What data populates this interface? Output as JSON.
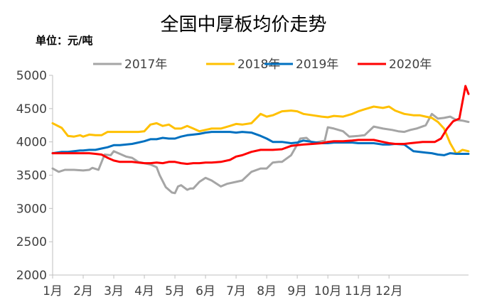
{
  "chart_data": {
    "type": "line",
    "title": "全国中厚板均价走势",
    "unit_label": "单位：元/吨",
    "categories": [
      "1月",
      "2月",
      "3月",
      "4月",
      "5月",
      "6月",
      "7月",
      "8月",
      "9月",
      "10月",
      "11月",
      "12月"
    ],
    "ylim": [
      2000,
      5000
    ],
    "yticks": [
      2000,
      2500,
      3000,
      3500,
      4000,
      4500,
      5000
    ],
    "grid": false,
    "legend_position": "top",
    "series": [
      {
        "name": "2017年",
        "color": "#a5a5a5",
        "x": [
          0,
          0.2,
          0.4,
          0.7,
          1.0,
          1.2,
          1.3,
          1.5,
          1.7,
          1.9,
          2.0,
          2.2,
          2.4,
          2.6,
          2.8,
          3.0,
          3.2,
          3.4,
          3.5,
          3.7,
          3.9,
          4.0,
          4.1,
          4.2,
          4.4,
          4.5,
          4.6,
          4.8,
          5.0,
          5.2,
          5.5,
          5.7,
          6.0,
          6.2,
          6.5,
          6.8,
          7.0,
          7.2,
          7.4,
          7.5,
          7.8,
          8.0,
          8.1,
          8.3,
          8.5,
          8.7,
          8.9,
          9.0,
          9.2,
          9.5,
          9.7,
          10.0,
          10.2,
          10.5,
          10.8,
          11.1,
          11.3,
          11.5,
          11.7,
          11.9,
          12.2,
          12.4,
          12.6,
          12.8,
          13.0,
          13.2,
          13.4,
          13.6
        ],
        "y": [
          3600,
          3550,
          3580,
          3580,
          3570,
          3580,
          3610,
          3580,
          3810,
          3800,
          3860,
          3820,
          3780,
          3760,
          3700,
          3680,
          3660,
          3620,
          3500,
          3320,
          3240,
          3230,
          3330,
          3350,
          3280,
          3300,
          3300,
          3400,
          3460,
          3420,
          3330,
          3370,
          3400,
          3420,
          3550,
          3600,
          3600,
          3690,
          3700,
          3700,
          3800,
          3960,
          4050,
          4060,
          3980,
          4000,
          4020,
          4220,
          4200,
          4160,
          4080,
          4090,
          4100,
          4230,
          4200,
          4180,
          4160,
          4150,
          4180,
          4200,
          4250,
          4420,
          4350,
          4360,
          4380,
          4330,
          4320,
          4300
        ]
      },
      {
        "name": "2018年",
        "color": "#ffc000",
        "x": [
          0,
          0.3,
          0.5,
          0.7,
          0.9,
          1.0,
          1.2,
          1.4,
          1.6,
          1.8,
          2.0,
          2.2,
          2.4,
          2.6,
          2.8,
          3.0,
          3.2,
          3.4,
          3.6,
          3.8,
          4.0,
          4.2,
          4.4,
          4.6,
          4.8,
          5.0,
          5.2,
          5.5,
          5.8,
          6.0,
          6.2,
          6.5,
          6.8,
          7.0,
          7.2,
          7.5,
          7.8,
          8.0,
          8.2,
          8.5,
          8.8,
          9.0,
          9.2,
          9.5,
          9.8,
          10.0,
          10.2,
          10.5,
          10.8,
          11.0,
          11.2,
          11.5,
          11.8,
          12.0,
          12.2,
          12.4,
          12.6,
          12.8,
          13.0,
          13.2,
          13.4,
          13.6
        ],
        "y": [
          4280,
          4210,
          4090,
          4080,
          4100,
          4080,
          4110,
          4100,
          4100,
          4150,
          4150,
          4150,
          4150,
          4150,
          4150,
          4160,
          4260,
          4280,
          4240,
          4260,
          4200,
          4200,
          4240,
          4200,
          4160,
          4180,
          4200,
          4200,
          4240,
          4270,
          4260,
          4280,
          4420,
          4380,
          4400,
          4460,
          4470,
          4460,
          4420,
          4400,
          4380,
          4370,
          4390,
          4380,
          4420,
          4460,
          4490,
          4530,
          4510,
          4530,
          4470,
          4420,
          4400,
          4400,
          4380,
          4360,
          4300,
          4200,
          3980,
          3820,
          3880,
          3860
        ]
      },
      {
        "name": "2019年",
        "color": "#0070c0",
        "x": [
          0,
          0.3,
          0.5,
          0.7,
          0.9,
          1.0,
          1.2,
          1.4,
          1.6,
          1.8,
          2.0,
          2.2,
          2.4,
          2.6,
          2.8,
          3.0,
          3.2,
          3.4,
          3.6,
          3.8,
          4.0,
          4.2,
          4.4,
          4.6,
          4.8,
          5.0,
          5.2,
          5.5,
          5.8,
          6.0,
          6.2,
          6.5,
          6.8,
          7.0,
          7.2,
          7.5,
          7.8,
          8.0,
          8.2,
          8.5,
          8.8,
          9.0,
          9.2,
          9.5,
          9.8,
          10.0,
          10.2,
          10.5,
          10.8,
          11.0,
          11.2,
          11.5,
          11.8,
          12.0,
          12.2,
          12.4,
          12.6,
          12.8,
          13.0,
          13.2,
          13.4,
          13.6
        ],
        "y": [
          3830,
          3850,
          3850,
          3860,
          3870,
          3870,
          3880,
          3880,
          3900,
          3920,
          3950,
          3950,
          3960,
          3970,
          3990,
          4010,
          4040,
          4040,
          4060,
          4050,
          4050,
          4080,
          4100,
          4110,
          4120,
          4140,
          4150,
          4150,
          4150,
          4140,
          4150,
          4140,
          4090,
          4050,
          4000,
          4000,
          3980,
          3990,
          4020,
          4000,
          3980,
          3980,
          3990,
          3990,
          3990,
          3980,
          3980,
          3980,
          3960,
          3960,
          3970,
          3960,
          3860,
          3850,
          3840,
          3830,
          3810,
          3800,
          3830,
          3820,
          3820,
          3820
        ]
      },
      {
        "name": "2020年",
        "color": "#ff0000",
        "x": [
          0,
          0.3,
          0.5,
          0.7,
          0.9,
          1.0,
          1.2,
          1.4,
          1.6,
          1.8,
          2.0,
          2.2,
          2.4,
          2.6,
          2.8,
          3.0,
          3.2,
          3.4,
          3.6,
          3.8,
          4.0,
          4.2,
          4.4,
          4.6,
          4.8,
          5.0,
          5.2,
          5.5,
          5.8,
          6.0,
          6.2,
          6.5,
          6.8,
          7.0,
          7.2,
          7.5,
          7.8,
          8.0,
          8.2,
          8.5,
          8.8,
          9.0,
          9.2,
          9.5,
          9.8,
          10.0,
          10.2,
          10.5,
          10.8,
          11.0,
          11.2,
          11.5,
          11.7,
          11.9,
          12.1,
          12.3,
          12.5,
          12.7,
          12.9,
          13.1,
          13.3,
          13.5,
          13.6
        ],
        "y": [
          3830,
          3830,
          3830,
          3830,
          3830,
          3830,
          3830,
          3820,
          3810,
          3760,
          3720,
          3700,
          3700,
          3700,
          3690,
          3680,
          3680,
          3690,
          3680,
          3700,
          3700,
          3680,
          3670,
          3680,
          3680,
          3690,
          3690,
          3700,
          3730,
          3780,
          3800,
          3850,
          3880,
          3880,
          3880,
          3890,
          3940,
          3950,
          3960,
          3970,
          3980,
          4000,
          4010,
          4010,
          4020,
          4030,
          4030,
          4030,
          4000,
          3980,
          3970,
          3970,
          3980,
          3990,
          4000,
          4000,
          4000,
          4050,
          4200,
          4310,
          4350,
          4840,
          4720
        ]
      }
    ]
  }
}
